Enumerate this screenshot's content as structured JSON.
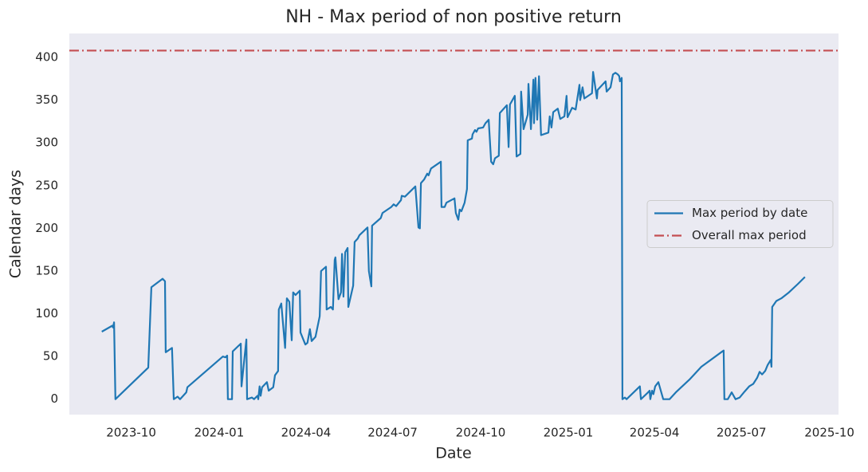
{
  "chart_data": {
    "type": "line",
    "title": "NH - Max period of non positive return",
    "xlabel": "Date",
    "ylabel": "Calendar days",
    "x": [
      2023.664,
      2023.694,
      2023.696,
      2023.699,
      2023.703,
      2023.797,
      2023.806,
      2023.838,
      2023.845,
      2023.847,
      2023.865,
      2023.87,
      2023.881,
      2023.888,
      2023.906,
      2023.909,
      2024.011,
      2024.018,
      2024.023,
      2024.025,
      2024.037,
      2024.039,
      2024.062,
      2024.064,
      2024.078,
      2024.08,
      2024.094,
      2024.1,
      2024.11,
      2024.112,
      2024.116,
      2024.119,
      2024.123,
      2024.137,
      2024.142,
      2024.155,
      2024.16,
      2024.169,
      2024.171,
      2024.178,
      2024.189,
      2024.194,
      2024.201,
      2024.208,
      2024.212,
      2024.219,
      2024.231,
      2024.233,
      2024.247,
      2024.253,
      2024.26,
      2024.265,
      2024.276,
      2024.288,
      2024.292,
      2024.306,
      2024.308,
      2024.32,
      2024.326,
      2024.331,
      2024.333,
      2024.342,
      2024.349,
      2024.352,
      2024.356,
      2024.361,
      2024.368,
      2024.37,
      2024.384,
      2024.388,
      2024.397,
      2024.402,
      2024.425,
      2024.429,
      2024.436,
      2024.438,
      2024.463,
      2024.468,
      2024.493,
      2024.5,
      2024.507,
      2024.521,
      2024.523,
      2024.532,
      2024.562,
      2024.571,
      2024.575,
      2024.578,
      2024.587,
      2024.596,
      2024.6,
      2024.607,
      2024.635,
      2024.637,
      2024.646,
      2024.651,
      2024.674,
      2024.678,
      2024.685,
      2024.689,
      2024.694,
      2024.703,
      2024.71,
      2024.712,
      2024.724,
      2024.726,
      2024.733,
      2024.737,
      2024.742,
      2024.756,
      2024.763,
      2024.772,
      2024.779,
      2024.785,
      2024.79,
      2024.801,
      2024.804,
      2024.824,
      2024.829,
      2024.833,
      2024.84,
      2024.847,
      2024.852,
      2024.863,
      2024.865,
      2024.872,
      2024.884,
      2024.886,
      2024.893,
      2024.9,
      2024.902,
      2024.906,
      2024.911,
      2024.916,
      2024.922,
      2024.943,
      2024.947,
      2024.952,
      2024.957,
      2024.97,
      2024.977,
      2024.989,
      2024.995,
      2024.998,
      2025.011,
      2025.021,
      2025.032,
      2025.034,
      2025.041,
      2025.046,
      2025.068,
      2025.071,
      2025.082,
      2025.084,
      2025.107,
      2025.11,
      2025.121,
      2025.128,
      2025.135,
      2025.142,
      2025.146,
      2025.148,
      2025.153,
      2025.155,
      2025.162,
      2025.167,
      2025.205,
      2025.208,
      2025.226,
      2025.233,
      2025.235,
      2025.24,
      2025.244,
      2025.249,
      2025.258,
      2025.272,
      2025.29,
      2025.308,
      2025.347,
      2025.381,
      2025.438,
      2025.445,
      2025.447,
      2025.457,
      2025.468,
      2025.479,
      2025.491,
      2025.505,
      2025.518,
      2025.53,
      2025.541,
      2025.548,
      2025.555,
      2025.564,
      2025.571,
      2025.58,
      2025.582,
      2025.584,
      2025.596,
      2025.61,
      2025.632,
      2025.658,
      2025.678
    ],
    "series": [
      {
        "name": "Max period by date",
        "color": "#1f77b4",
        "values": [
          79,
          86,
          84,
          90,
          0,
          37,
          131,
          141,
          138,
          55,
          60,
          0,
          3,
          0,
          8,
          14,
          50,
          49,
          51,
          0,
          0,
          56,
          65,
          15,
          70,
          0,
          2,
          0,
          4,
          0,
          15,
          4,
          14,
          20,
          10,
          14,
          28,
          33,
          105,
          112,
          60,
          118,
          114,
          69,
          125,
          122,
          127,
          78,
          64,
          66,
          82,
          68,
          73,
          97,
          150,
          155,
          105,
          108,
          105,
          163,
          166,
          117,
          125,
          170,
          120,
          172,
          177,
          108,
          133,
          184,
          188,
          192,
          201,
          150,
          132,
          203,
          212,
          218,
          225,
          228,
          226,
          233,
          238,
          237,
          249,
          201,
          200,
          253,
          257,
          264,
          262,
          270,
          278,
          225,
          225,
          230,
          235,
          218,
          210,
          222,
          220,
          230,
          246,
          303,
          305,
          310,
          315,
          313,
          317,
          318,
          323,
          327,
          278,
          275,
          282,
          285,
          335,
          344,
          295,
          345,
          350,
          355,
          284,
          287,
          360,
          316,
          333,
          369,
          316,
          374,
          323,
          376,
          327,
          378,
          309,
          312,
          331,
          318,
          336,
          340,
          328,
          331,
          355,
          330,
          341,
          339,
          368,
          350,
          365,
          352,
          358,
          383,
          352,
          362,
          372,
          360,
          365,
          380,
          382,
          380,
          378,
          372,
          376,
          0,
          2,
          0,
          15,
          0,
          7,
          10,
          0,
          10,
          6,
          15,
          20,
          0,
          0,
          8,
          23,
          38,
          55,
          57,
          0,
          0,
          8,
          0,
          2,
          9,
          15,
          18,
          25,
          32,
          29,
          33,
          40,
          46,
          38,
          108,
          115,
          118,
          125,
          135,
          143
        ]
      },
      {
        "name": "Overall max period",
        "color": "#c44e52",
        "style": "dashdot",
        "value": 408
      }
    ],
    "xlim": [
      2023.571,
      2025.774
    ],
    "xticks": [
      {
        "value": 2023.748,
        "label": "2023-10"
      },
      {
        "value": 2024.0,
        "label": "2024-01"
      },
      {
        "value": 2024.249,
        "label": "2024-04"
      },
      {
        "value": 2024.497,
        "label": "2024-07"
      },
      {
        "value": 2024.749,
        "label": "2024-10"
      },
      {
        "value": 2025.0,
        "label": "2025-01"
      },
      {
        "value": 2025.247,
        "label": "2025-04"
      },
      {
        "value": 2025.496,
        "label": "2025-07"
      },
      {
        "value": 2025.748,
        "label": "2025-10"
      }
    ],
    "ylim": [
      -18,
      428
    ],
    "yticks": [
      0,
      50,
      100,
      150,
      200,
      250,
      300,
      350,
      400
    ],
    "grid": false,
    "legend": "center right",
    "background": "#eaeaf2"
  }
}
